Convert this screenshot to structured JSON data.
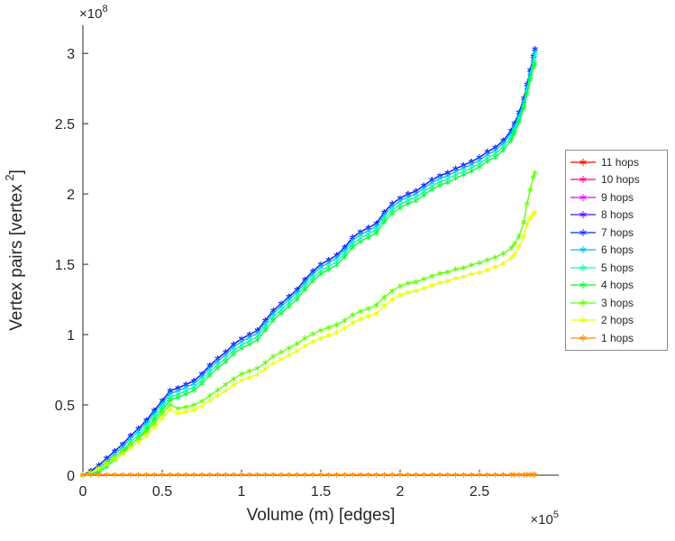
{
  "figure": {
    "background": "#ffffff",
    "axis_color": "#262626",
    "text_color": "#262626",
    "legend_border_color": "#8c8c8c"
  },
  "chart_data": {
    "type": "line",
    "title": "",
    "xlabel": "Volume (m) [edges]",
    "ylabel": "Vertex pairs [vertex^2]",
    "ylabel_parts": {
      "prefix": "Vertex pairs [vertex",
      "sup": "2",
      "suffix": "]"
    },
    "x_multiplier": {
      "prefix": "×10",
      "sup": "5"
    },
    "y_multiplier": {
      "prefix": "×10",
      "sup": "8"
    },
    "units_note": "x values are in units of 100000 edges; y values are in units of 100000000 vertex pairs",
    "x_scale": 100000,
    "y_scale": 100000000,
    "xlim": [
      0,
      3.0
    ],
    "ylim": [
      0,
      3.2
    ],
    "xticks": [
      0,
      0.5,
      1,
      1.5,
      2,
      2.5
    ],
    "xtick_labels": [
      "0",
      "0.5",
      "1",
      "1.5",
      "2",
      "2.5"
    ],
    "yticks": [
      0,
      0.5,
      1,
      1.5,
      2,
      2.5,
      3
    ],
    "ytick_labels": [
      "0",
      "0.5",
      "1",
      "1.5",
      "2",
      "2.5",
      "3"
    ],
    "grid": false,
    "marker": "asterisk",
    "legend_position": "right-outside",
    "x": [
      0,
      0.05,
      0.1,
      0.15,
      0.2,
      0.25,
      0.3,
      0.35,
      0.4,
      0.45,
      0.5,
      0.55,
      0.6,
      0.65,
      0.7,
      0.75,
      0.8,
      0.85,
      0.9,
      0.95,
      1.0,
      1.05,
      1.1,
      1.15,
      1.2,
      1.25,
      1.3,
      1.35,
      1.4,
      1.45,
      1.5,
      1.55,
      1.6,
      1.65,
      1.7,
      1.75,
      1.8,
      1.85,
      1.9,
      1.95,
      2.0,
      2.05,
      2.1,
      2.15,
      2.2,
      2.25,
      2.3,
      2.35,
      2.4,
      2.45,
      2.5,
      2.55,
      2.6,
      2.65,
      2.7,
      2.72,
      2.75,
      2.78,
      2.8,
      2.82,
      2.84,
      2.85
    ],
    "series": [
      {
        "name": "11 hops",
        "color": "#ff0000",
        "values": [
          0,
          0.03,
          0.07,
          0.12,
          0.17,
          0.22,
          0.28,
          0.33,
          0.39,
          0.46,
          0.53,
          0.6,
          0.62,
          0.645,
          0.67,
          0.72,
          0.78,
          0.83,
          0.875,
          0.93,
          0.97,
          1.0,
          1.03,
          1.1,
          1.17,
          1.22,
          1.27,
          1.32,
          1.39,
          1.45,
          1.5,
          1.53,
          1.565,
          1.62,
          1.69,
          1.73,
          1.76,
          1.79,
          1.87,
          1.93,
          1.97,
          2.0,
          2.02,
          2.06,
          2.1,
          2.13,
          2.15,
          2.18,
          2.205,
          2.23,
          2.26,
          2.3,
          2.33,
          2.38,
          2.45,
          2.5,
          2.58,
          2.68,
          2.78,
          2.88,
          2.98,
          3.03
        ]
      },
      {
        "name": "10 hops",
        "color": "#ff008b",
        "values": [
          0,
          0.03,
          0.07,
          0.12,
          0.17,
          0.22,
          0.28,
          0.33,
          0.39,
          0.46,
          0.53,
          0.6,
          0.62,
          0.645,
          0.67,
          0.72,
          0.78,
          0.83,
          0.875,
          0.93,
          0.97,
          1.0,
          1.03,
          1.1,
          1.17,
          1.22,
          1.27,
          1.32,
          1.39,
          1.45,
          1.5,
          1.53,
          1.565,
          1.62,
          1.69,
          1.73,
          1.76,
          1.79,
          1.87,
          1.93,
          1.97,
          2.0,
          2.02,
          2.06,
          2.1,
          2.13,
          2.15,
          2.18,
          2.205,
          2.23,
          2.26,
          2.3,
          2.33,
          2.38,
          2.45,
          2.5,
          2.58,
          2.68,
          2.78,
          2.88,
          2.98,
          3.03
        ]
      },
      {
        "name": "9 hops",
        "color": "#e800ff",
        "values": [
          0,
          0.03,
          0.07,
          0.12,
          0.17,
          0.22,
          0.28,
          0.33,
          0.39,
          0.46,
          0.53,
          0.6,
          0.62,
          0.645,
          0.67,
          0.72,
          0.78,
          0.83,
          0.875,
          0.93,
          0.97,
          1.0,
          1.03,
          1.1,
          1.17,
          1.22,
          1.27,
          1.32,
          1.39,
          1.45,
          1.5,
          1.53,
          1.565,
          1.62,
          1.69,
          1.73,
          1.76,
          1.79,
          1.87,
          1.93,
          1.97,
          2.0,
          2.02,
          2.06,
          2.1,
          2.13,
          2.15,
          2.18,
          2.205,
          2.23,
          2.26,
          2.3,
          2.33,
          2.38,
          2.45,
          2.5,
          2.58,
          2.68,
          2.78,
          2.88,
          2.98,
          3.03
        ]
      },
      {
        "name": "8 hops",
        "color": "#5d00ff",
        "values": [
          0,
          0.03,
          0.07,
          0.12,
          0.17,
          0.22,
          0.28,
          0.33,
          0.39,
          0.46,
          0.53,
          0.6,
          0.62,
          0.645,
          0.67,
          0.72,
          0.78,
          0.83,
          0.875,
          0.93,
          0.97,
          1.0,
          1.03,
          1.1,
          1.17,
          1.22,
          1.27,
          1.32,
          1.39,
          1.45,
          1.5,
          1.53,
          1.565,
          1.62,
          1.69,
          1.73,
          1.76,
          1.79,
          1.87,
          1.93,
          1.97,
          2.0,
          2.02,
          2.06,
          2.1,
          2.13,
          2.15,
          2.18,
          2.205,
          2.23,
          2.26,
          2.3,
          2.33,
          2.38,
          2.45,
          2.5,
          2.58,
          2.68,
          2.78,
          2.88,
          2.98,
          3.03
        ]
      },
      {
        "name": "7 hops",
        "color": "#002eff",
        "values": [
          0,
          0.03,
          0.07,
          0.12,
          0.17,
          0.22,
          0.28,
          0.33,
          0.39,
          0.46,
          0.53,
          0.6,
          0.62,
          0.645,
          0.67,
          0.72,
          0.78,
          0.83,
          0.875,
          0.93,
          0.97,
          1.0,
          1.03,
          1.1,
          1.17,
          1.22,
          1.27,
          1.32,
          1.39,
          1.45,
          1.5,
          1.53,
          1.565,
          1.62,
          1.69,
          1.73,
          1.76,
          1.79,
          1.87,
          1.93,
          1.97,
          2.0,
          2.02,
          2.06,
          2.1,
          2.13,
          2.15,
          2.18,
          2.205,
          2.23,
          2.26,
          2.3,
          2.33,
          2.38,
          2.45,
          2.5,
          2.58,
          2.68,
          2.78,
          2.88,
          2.98,
          3.03
        ]
      },
      {
        "name": "6 hops",
        "color": "#00b9ff",
        "values": [
          0,
          0.015,
          0.05,
          0.1,
          0.15,
          0.2,
          0.26,
          0.31,
          0.37,
          0.44,
          0.51,
          0.58,
          0.6,
          0.625,
          0.65,
          0.7,
          0.76,
          0.81,
          0.855,
          0.91,
          0.95,
          0.98,
          1.01,
          1.08,
          1.15,
          1.2,
          1.25,
          1.3,
          1.37,
          1.43,
          1.48,
          1.51,
          1.545,
          1.6,
          1.67,
          1.71,
          1.74,
          1.77,
          1.85,
          1.91,
          1.95,
          1.98,
          2.0,
          2.04,
          2.08,
          2.11,
          2.13,
          2.16,
          2.185,
          2.21,
          2.24,
          2.28,
          2.31,
          2.36,
          2.43,
          2.48,
          2.56,
          2.66,
          2.76,
          2.86,
          2.96,
          3.01
        ]
      },
      {
        "name": "5 hops",
        "color": "#00ffb9",
        "values": [
          0,
          0.008,
          0.03,
          0.078,
          0.127,
          0.177,
          0.236,
          0.286,
          0.346,
          0.416,
          0.486,
          0.556,
          0.576,
          0.6,
          0.626,
          0.676,
          0.736,
          0.786,
          0.83,
          0.886,
          0.926,
          0.956,
          0.986,
          1.056,
          1.126,
          1.176,
          1.226,
          1.276,
          1.346,
          1.406,
          1.456,
          1.486,
          1.52,
          1.576,
          1.646,
          1.686,
          1.716,
          1.746,
          1.826,
          1.886,
          1.926,
          1.956,
          1.976,
          2.016,
          2.056,
          2.086,
          2.106,
          2.136,
          2.16,
          2.186,
          2.216,
          2.256,
          2.286,
          2.336,
          2.406,
          2.456,
          2.536,
          2.636,
          2.736,
          2.836,
          2.936,
          2.985
        ]
      },
      {
        "name": "4 hops",
        "color": "#00ff2e",
        "values": [
          0,
          0.004,
          0.02,
          0.06,
          0.11,
          0.155,
          0.215,
          0.265,
          0.325,
          0.395,
          0.465,
          0.535,
          0.553,
          0.578,
          0.602,
          0.652,
          0.712,
          0.762,
          0.807,
          0.862,
          0.902,
          0.932,
          0.962,
          1.032,
          1.102,
          1.152,
          1.202,
          1.252,
          1.322,
          1.382,
          1.432,
          1.462,
          1.497,
          1.552,
          1.622,
          1.662,
          1.692,
          1.722,
          1.802,
          1.862,
          1.902,
          1.932,
          1.952,
          1.992,
          2.032,
          2.062,
          2.082,
          2.112,
          2.137,
          2.162,
          2.192,
          2.232,
          2.262,
          2.312,
          2.382,
          2.432,
          2.512,
          2.612,
          2.712,
          2.812,
          2.902,
          2.925
        ]
      },
      {
        "name": "3 hops",
        "color": "#5dff00",
        "values": [
          0,
          0.02,
          0.05,
          0.09,
          0.13,
          0.17,
          0.22,
          0.26,
          0.31,
          0.37,
          0.44,
          0.5,
          0.475,
          0.485,
          0.5,
          0.525,
          0.565,
          0.605,
          0.645,
          0.685,
          0.72,
          0.74,
          0.76,
          0.8,
          0.845,
          0.875,
          0.905,
          0.935,
          0.975,
          1.005,
          1.03,
          1.05,
          1.07,
          1.1,
          1.14,
          1.165,
          1.185,
          1.21,
          1.265,
          1.31,
          1.345,
          1.365,
          1.375,
          1.395,
          1.415,
          1.435,
          1.445,
          1.465,
          1.475,
          1.495,
          1.51,
          1.53,
          1.55,
          1.575,
          1.615,
          1.645,
          1.7,
          1.8,
          1.93,
          2.03,
          2.12,
          2.15
        ]
      },
      {
        "name": "2 hops",
        "color": "#e8ff00",
        "values": [
          0,
          0.018,
          0.045,
          0.08,
          0.115,
          0.15,
          0.195,
          0.235,
          0.28,
          0.34,
          0.405,
          0.465,
          0.44,
          0.45,
          0.465,
          0.49,
          0.53,
          0.565,
          0.6,
          0.64,
          0.675,
          0.695,
          0.715,
          0.755,
          0.795,
          0.825,
          0.855,
          0.885,
          0.92,
          0.95,
          0.975,
          0.995,
          1.015,
          1.045,
          1.085,
          1.11,
          1.13,
          1.15,
          1.205,
          1.25,
          1.28,
          1.3,
          1.31,
          1.33,
          1.35,
          1.37,
          1.38,
          1.4,
          1.41,
          1.43,
          1.44,
          1.46,
          1.48,
          1.505,
          1.545,
          1.57,
          1.625,
          1.7,
          1.78,
          1.83,
          1.86,
          1.87
        ]
      },
      {
        "name": "1 hops",
        "color": "#ff8b00",
        "values": [
          0.004,
          0.004,
          0.004,
          0.004,
          0.004,
          0.004,
          0.004,
          0.004,
          0.004,
          0.004,
          0.004,
          0.004,
          0.004,
          0.004,
          0.004,
          0.004,
          0.004,
          0.004,
          0.004,
          0.004,
          0.004,
          0.004,
          0.004,
          0.004,
          0.004,
          0.004,
          0.004,
          0.004,
          0.004,
          0.004,
          0.004,
          0.004,
          0.004,
          0.004,
          0.004,
          0.004,
          0.004,
          0.004,
          0.004,
          0.004,
          0.004,
          0.004,
          0.004,
          0.004,
          0.004,
          0.004,
          0.004,
          0.004,
          0.004,
          0.004,
          0.004,
          0.004,
          0.004,
          0.004,
          0.004,
          0.004,
          0.004,
          0.004,
          0.004,
          0.004,
          0.004,
          0.004
        ]
      }
    ]
  }
}
